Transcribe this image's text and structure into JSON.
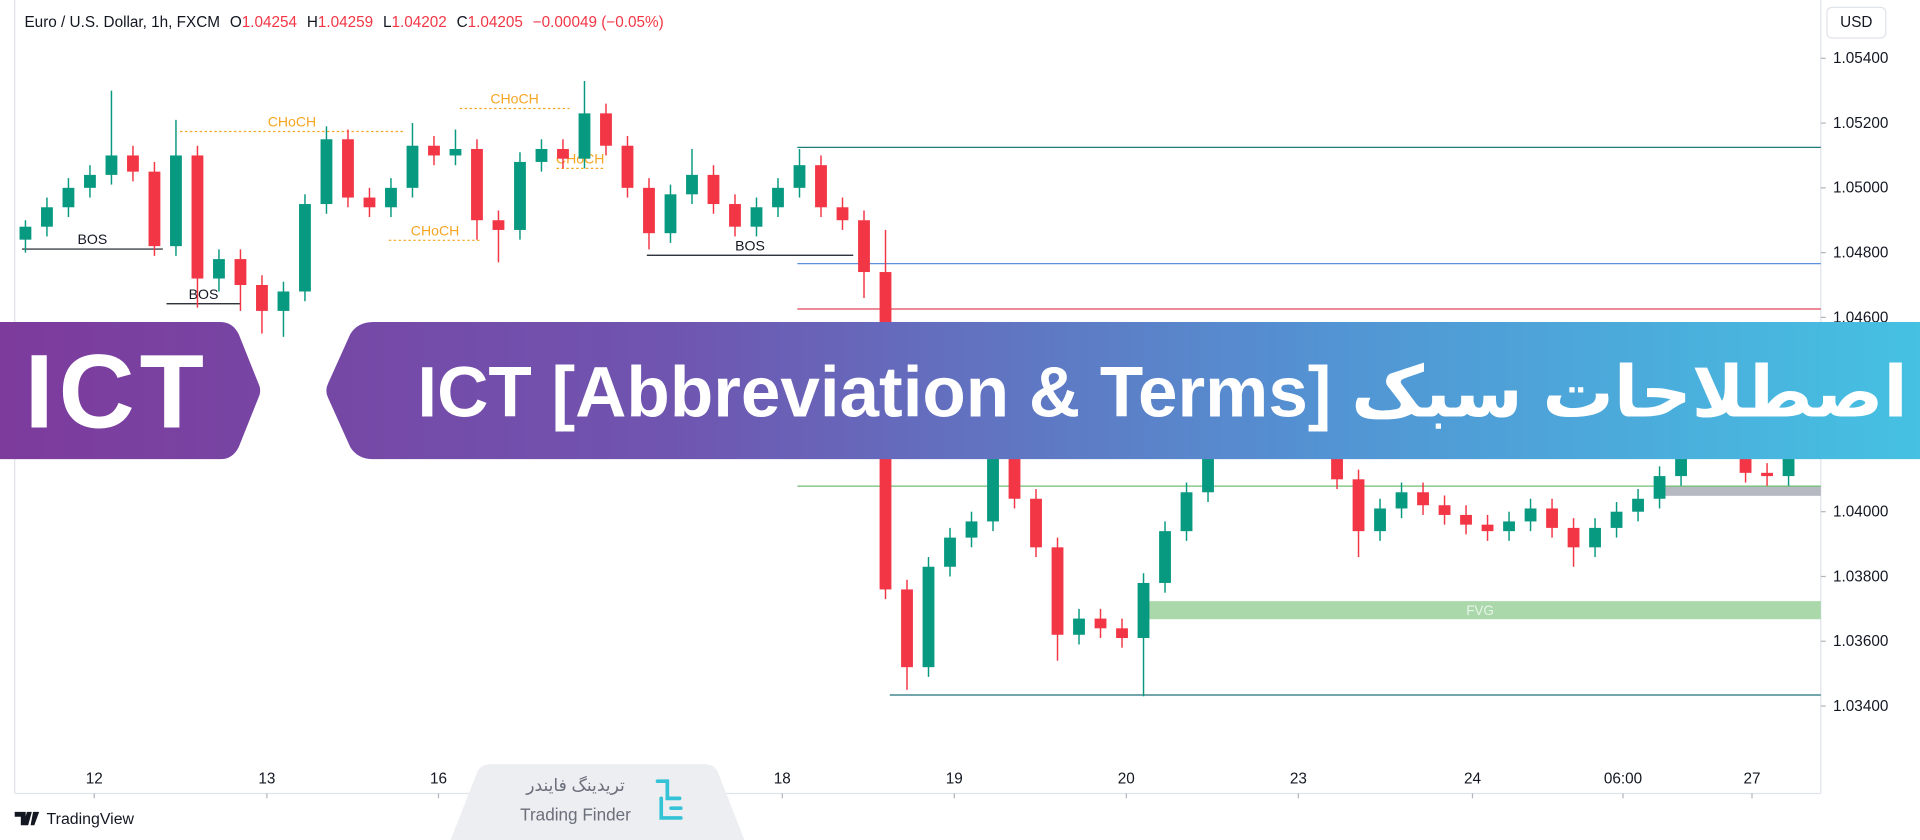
{
  "chart_data": {
    "type": "candlestick",
    "legend_header": {
      "symbol": "Euro / U.S. Dollar, 1h, FXCM",
      "ohlc": [
        {
          "key": "O",
          "value": "1.04254"
        },
        {
          "key": "H",
          "value": "1.04259"
        },
        {
          "key": "L",
          "value": "1.04202"
        },
        {
          "key": "C",
          "value": "1.04205"
        }
      ],
      "change": "−0.00049 (−0.05%)"
    },
    "currency": "USD",
    "up_color": "#089981",
    "down_color": "#f23645",
    "grid": false,
    "xlim": [
      0,
      84
    ],
    "ylim": [
      1.0313,
      1.0558
    ],
    "xticks": [
      {
        "value": 3.7,
        "label": "12"
      },
      {
        "value": 11.73,
        "label": "13"
      },
      {
        "value": 19.71,
        "label": "16"
      },
      {
        "value": 35.7,
        "label": "18"
      },
      {
        "value": 43.7,
        "label": "19"
      },
      {
        "value": 51.7,
        "label": "20"
      },
      {
        "value": 59.7,
        "label": "23"
      },
      {
        "value": 67.8,
        "label": "24"
      },
      {
        "value": 74.8,
        "label": "06:00"
      },
      {
        "value": 80.8,
        "label": "27"
      }
    ],
    "yticks": [
      {
        "value": 1.054,
        "label": "1.05400"
      },
      {
        "value": 1.052,
        "label": "1.05200"
      },
      {
        "value": 1.05,
        "label": "1.05000"
      },
      {
        "value": 1.048,
        "label": "1.04800"
      },
      {
        "value": 1.046,
        "label": "1.04600"
      },
      {
        "value": 1.044,
        "label": "1.04400"
      },
      {
        "value": 1.042,
        "label": "1.04200"
      },
      {
        "value": 1.04,
        "label": "1.04000"
      },
      {
        "value": 1.038,
        "label": "1.03800"
      },
      {
        "value": 1.036,
        "label": "1.03600"
      },
      {
        "value": 1.034,
        "label": "1.03400"
      }
    ],
    "candles": [
      [
        1.0484,
        1.049,
        1.048,
        1.0488
      ],
      [
        1.0488,
        1.0497,
        1.0485,
        1.0494
      ],
      [
        1.0494,
        1.0503,
        1.0491,
        1.05
      ],
      [
        1.05,
        1.0507,
        1.0497,
        1.0504
      ],
      [
        1.0504,
        1.053,
        1.0501,
        1.051
      ],
      [
        1.051,
        1.0513,
        1.0502,
        1.0505
      ],
      [
        1.0505,
        1.0508,
        1.0479,
        1.0482
      ],
      [
        1.0482,
        1.0521,
        1.0479,
        1.051
      ],
      [
        1.051,
        1.0513,
        1.0463,
        1.0472
      ],
      [
        1.0472,
        1.0481,
        1.0468,
        1.0478
      ],
      [
        1.0478,
        1.0481,
        1.0462,
        1.047
      ],
      [
        1.047,
        1.0473,
        1.0455,
        1.0462
      ],
      [
        1.0462,
        1.0471,
        1.0454,
        1.0468
      ],
      [
        1.0468,
        1.0498,
        1.0465,
        1.0495
      ],
      [
        1.0495,
        1.0519,
        1.0492,
        1.0515
      ],
      [
        1.0515,
        1.0518,
        1.0494,
        1.0497
      ],
      [
        1.0497,
        1.05,
        1.0491,
        1.0494
      ],
      [
        1.0494,
        1.0503,
        1.0491,
        1.05
      ],
      [
        1.05,
        1.052,
        1.0497,
        1.0513
      ],
      [
        1.0513,
        1.0516,
        1.0507,
        1.051
      ],
      [
        1.051,
        1.0518,
        1.0507,
        1.0512
      ],
      [
        1.0512,
        1.0515,
        1.0484,
        1.049
      ],
      [
        1.049,
        1.0493,
        1.0477,
        1.0487
      ],
      [
        1.0487,
        1.0511,
        1.0484,
        1.0508
      ],
      [
        1.0508,
        1.0515,
        1.0505,
        1.0512
      ],
      [
        1.0512,
        1.0515,
        1.0506,
        1.0509
      ],
      [
        1.0509,
        1.0533,
        1.0506,
        1.0523
      ],
      [
        1.0523,
        1.0526,
        1.051,
        1.0513
      ],
      [
        1.0513,
        1.0516,
        1.0497,
        1.05
      ],
      [
        1.05,
        1.0503,
        1.0481,
        1.0486
      ],
      [
        1.0486,
        1.0501,
        1.0483,
        1.0498
      ],
      [
        1.0498,
        1.0512,
        1.0495,
        1.0504
      ],
      [
        1.0504,
        1.0507,
        1.0492,
        1.0495
      ],
      [
        1.0495,
        1.0498,
        1.0485,
        1.0488
      ],
      [
        1.0488,
        1.0497,
        1.0485,
        1.0494
      ],
      [
        1.0494,
        1.0503,
        1.0491,
        1.05
      ],
      [
        1.05,
        1.0512,
        1.0497,
        1.0507
      ],
      [
        1.0507,
        1.051,
        1.0491,
        1.0494
      ],
      [
        1.0494,
        1.0497,
        1.0487,
        1.049
      ],
      [
        1.049,
        1.0493,
        1.0466,
        1.0474
      ],
      [
        1.0474,
        1.0487,
        1.0373,
        1.0376
      ],
      [
        1.0376,
        1.0379,
        1.0345,
        1.0352
      ],
      [
        1.0352,
        1.0386,
        1.0349,
        1.0383
      ],
      [
        1.0383,
        1.0395,
        1.038,
        1.0392
      ],
      [
        1.0392,
        1.04,
        1.0389,
        1.0397
      ],
      [
        1.0397,
        1.0437,
        1.0394,
        1.0422
      ],
      [
        1.0422,
        1.0425,
        1.0401,
        1.0404
      ],
      [
        1.0404,
        1.0407,
        1.0386,
        1.0389
      ],
      [
        1.0389,
        1.0392,
        1.0354,
        1.0362
      ],
      [
        1.0362,
        1.037,
        1.0359,
        1.0367
      ],
      [
        1.0367,
        1.037,
        1.0361,
        1.0364
      ],
      [
        1.0364,
        1.0367,
        1.0358,
        1.0361
      ],
      [
        1.0361,
        1.0381,
        1.0343,
        1.0378
      ],
      [
        1.0378,
        1.0397,
        1.0375,
        1.0394
      ],
      [
        1.0394,
        1.0409,
        1.0391,
        1.0406
      ],
      [
        1.0406,
        1.0424,
        1.0403,
        1.0421
      ],
      [
        1.0421,
        1.0447,
        1.0418,
        1.0444
      ],
      [
        1.0444,
        1.0454,
        1.0441,
        1.0451
      ],
      [
        1.0451,
        1.0454,
        1.0437,
        1.044
      ],
      [
        1.044,
        1.0443,
        1.0431,
        1.0434
      ],
      [
        1.0434,
        1.0437,
        1.0421,
        1.0424
      ],
      [
        1.0424,
        1.0427,
        1.0407,
        1.041
      ],
      [
        1.041,
        1.0413,
        1.0386,
        1.0394
      ],
      [
        1.0394,
        1.0404,
        1.0391,
        1.0401
      ],
      [
        1.0401,
        1.0409,
        1.0398,
        1.0406
      ],
      [
        1.0406,
        1.0409,
        1.0399,
        1.0402
      ],
      [
        1.0402,
        1.0405,
        1.0396,
        1.0399
      ],
      [
        1.0399,
        1.0402,
        1.0393,
        1.0396
      ],
      [
        1.0396,
        1.0399,
        1.0391,
        1.0394
      ],
      [
        1.0394,
        1.04,
        1.0391,
        1.0397
      ],
      [
        1.0397,
        1.0404,
        1.0394,
        1.0401
      ],
      [
        1.0401,
        1.0404,
        1.0392,
        1.0395
      ],
      [
        1.0395,
        1.0398,
        1.0383,
        1.0389
      ],
      [
        1.0389,
        1.0398,
        1.0386,
        1.0395
      ],
      [
        1.0395,
        1.0403,
        1.0392,
        1.04
      ],
      [
        1.04,
        1.0407,
        1.0397,
        1.0404
      ],
      [
        1.0404,
        1.0414,
        1.0401,
        1.0411
      ],
      [
        1.0411,
        1.0423,
        1.0408,
        1.042
      ],
      [
        1.042,
        1.0428,
        1.0417,
        1.0425
      ],
      [
        1.0425,
        1.0428,
        1.0418,
        1.0421
      ],
      [
        1.0421,
        1.0424,
        1.0409,
        1.0412
      ],
      [
        1.0412,
        1.0415,
        1.0408,
        1.0411
      ],
      [
        1.0411,
        1.0422,
        1.0408,
        1.0419
      ]
    ],
    "levels": [
      {
        "price": 1.05125,
        "x": [
          36.4,
          84
        ],
        "color": "#1f7a7a"
      },
      {
        "price": 1.04766,
        "x": [
          36.4,
          84
        ],
        "color": "#5b8fd9"
      },
      {
        "price": 1.04626,
        "x": [
          36.4,
          84
        ],
        "color": "#e0455a"
      },
      {
        "price": 1.04079,
        "x": [
          36.4,
          84
        ],
        "color": "#6fbf73"
      },
      {
        "price": 1.03434,
        "x": [
          40.7,
          84
        ],
        "color": "#1f6f7a"
      }
    ],
    "zones": [
      {
        "label": "FVG",
        "range": [
          1.03668,
          1.03724
        ],
        "x": [
          52.3,
          84
        ],
        "color": "#a5d6a7"
      },
      {
        "range": [
          1.04049,
          1.04079
        ],
        "x": [
          76.3,
          84
        ],
        "color": "#b2b5be"
      }
    ],
    "annotations": [
      {
        "label": "BOS",
        "price": 1.04811,
        "x": [
          0.34,
          6.89
        ],
        "style": "solid",
        "color": "#131722"
      },
      {
        "label": "BOS",
        "price": 1.04642,
        "x": [
          7.06,
          10.5
        ],
        "style": "solid",
        "color": "#131722"
      },
      {
        "label": "CHoCH",
        "price": 1.05174,
        "x": [
          7.69,
          18.1
        ],
        "style": "dotted",
        "color": "#f5a623"
      },
      {
        "label": "CHoCH",
        "price": 1.05245,
        "x": [
          20.7,
          25.8
        ],
        "style": "dotted",
        "color": "#f5a623"
      },
      {
        "label": "CHoCH",
        "price": 1.0506,
        "x": [
          25.2,
          27.4
        ],
        "style": "dotted",
        "color": "#f5a623"
      },
      {
        "label": "CHoCH",
        "price": 1.04838,
        "x": [
          17.4,
          21.7
        ],
        "style": "dotted",
        "color": "#f5a623"
      },
      {
        "label": "BOS",
        "price": 1.04792,
        "x": [
          29.4,
          39.0
        ],
        "style": "solid",
        "color": "#131722"
      }
    ]
  },
  "banner": {
    "left_title": "ICT",
    "title": "اصطلاحات سبک ICT [Abbreviation & Terms]"
  },
  "footer": {
    "platform": "TradingView",
    "watermark_fa": "تریدینگ فایندر",
    "watermark_en": "Trading Finder"
  }
}
